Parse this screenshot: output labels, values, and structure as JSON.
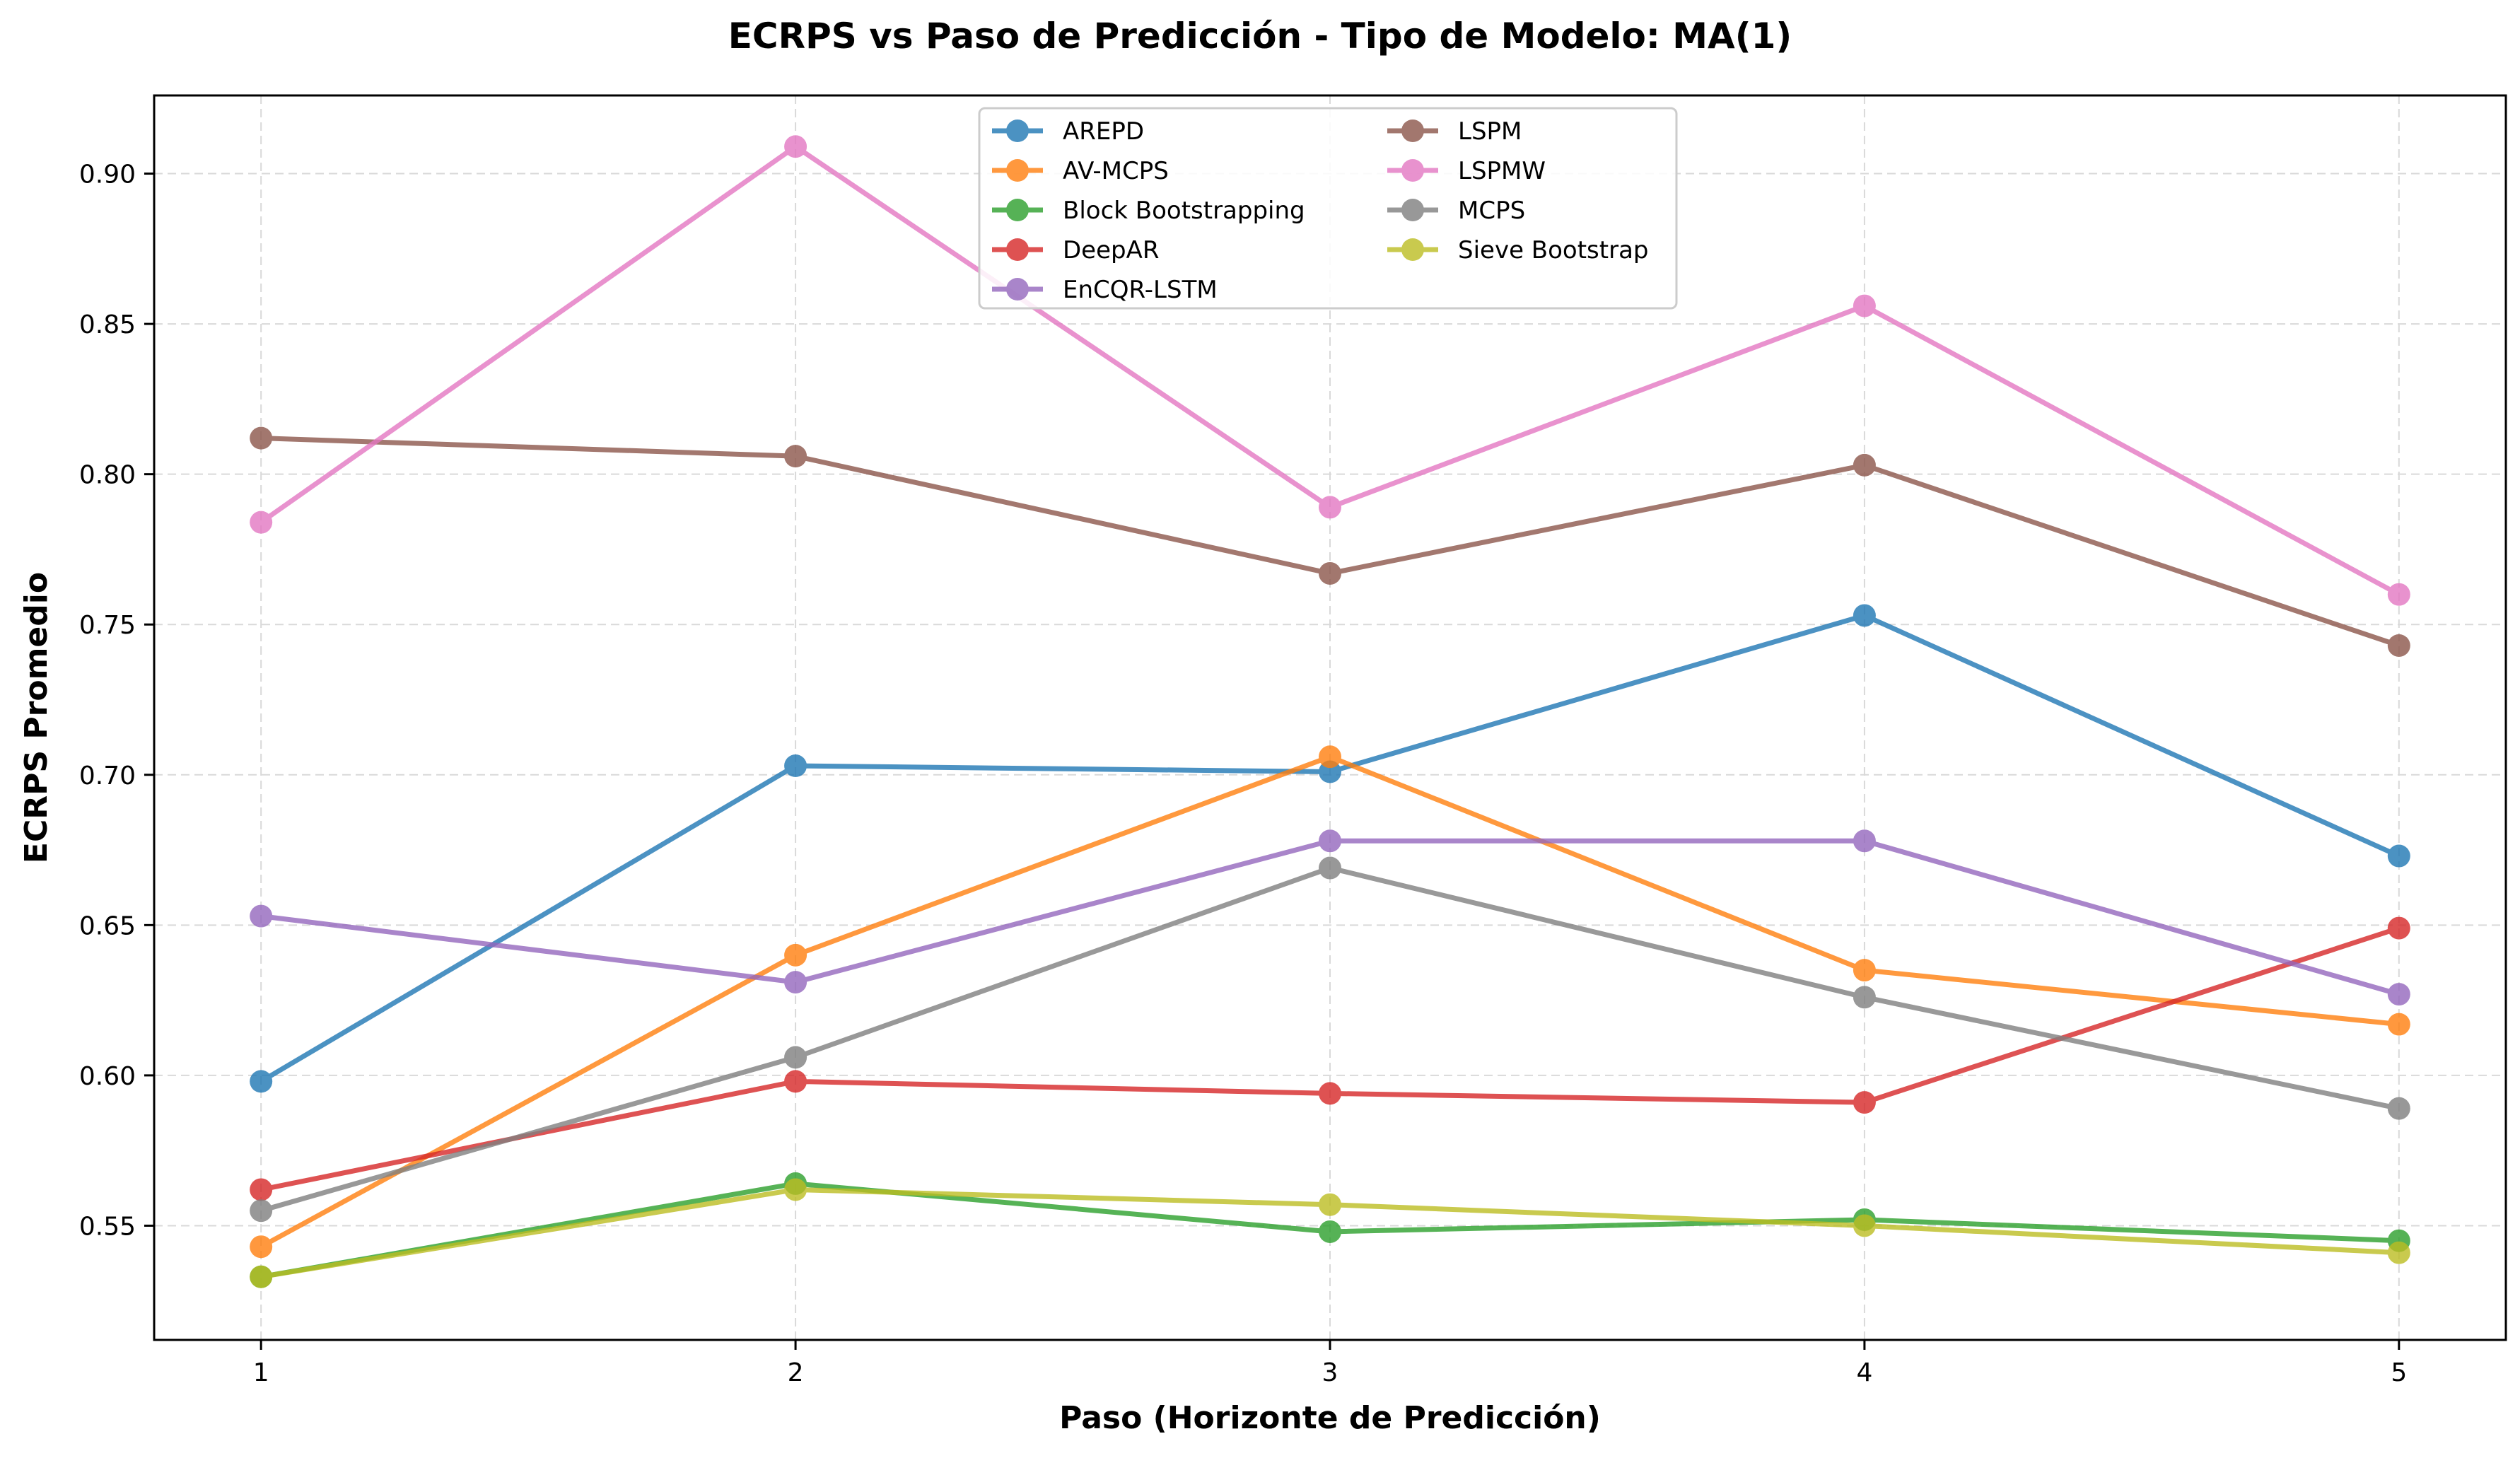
{
  "chart_data": {
    "type": "line",
    "title": "ECRPS vs Paso de Predicción - Tipo de Modelo: MA(1)",
    "xlabel": "Paso (Horizonte de Predicción)",
    "ylabel": "ECRPS Promedio",
    "x": [
      1,
      2,
      3,
      4,
      5
    ],
    "x_tick_labels": [
      "1",
      "2",
      "3",
      "4",
      "5"
    ],
    "xlim": [
      0.8,
      5.2
    ],
    "ylim": [
      0.512,
      0.926
    ],
    "y_ticks": [
      0.55,
      0.6,
      0.65,
      0.7,
      0.75,
      0.8,
      0.85,
      0.9
    ],
    "y_tick_labels": [
      "0.55",
      "0.60",
      "0.65",
      "0.70",
      "0.75",
      "0.80",
      "0.85",
      "0.90"
    ],
    "grid": true,
    "legend_position": "upper-center",
    "series": [
      {
        "name": "AREPD",
        "color": "#1f77b4",
        "values": [
          0.598,
          0.703,
          0.701,
          0.753,
          0.673
        ]
      },
      {
        "name": "AV-MCPS",
        "color": "#ff7f0e",
        "values": [
          0.543,
          0.64,
          0.706,
          0.635,
          0.617
        ]
      },
      {
        "name": "Block Bootstrapping",
        "color": "#2ca02c",
        "values": [
          0.533,
          0.564,
          0.548,
          0.552,
          0.545
        ]
      },
      {
        "name": "DeepAR",
        "color": "#d62728",
        "values": [
          0.562,
          0.598,
          0.594,
          0.591,
          0.649
        ]
      },
      {
        "name": "EnCQR-LSTM",
        "color": "#9467bd",
        "values": [
          0.653,
          0.631,
          0.678,
          0.678,
          0.627
        ]
      },
      {
        "name": "LSPM",
        "color": "#8c564b",
        "values": [
          0.812,
          0.806,
          0.767,
          0.803,
          0.743
        ]
      },
      {
        "name": "LSPMW",
        "color": "#e377c2",
        "values": [
          0.784,
          0.909,
          0.789,
          0.856,
          0.76
        ]
      },
      {
        "name": "MCPS",
        "color": "#7f7f7f",
        "values": [
          0.555,
          0.606,
          0.669,
          0.626,
          0.589
        ]
      },
      {
        "name": "Sieve Bootstrap",
        "color": "#bcbd22",
        "values": [
          0.533,
          0.562,
          0.557,
          0.55,
          0.541
        ]
      }
    ]
  }
}
